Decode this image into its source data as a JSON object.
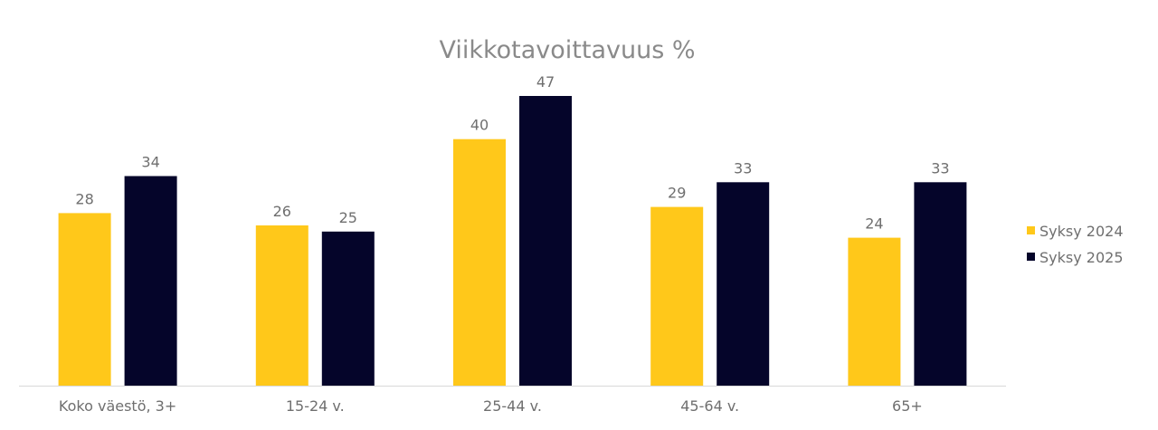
{
  "chart_data": {
    "type": "bar",
    "title": "Viikkotavoittavuus %",
    "categories": [
      "Koko väestö, 3+",
      "15-24 v.",
      "25-44 v.",
      "45-64 v.",
      "65+"
    ],
    "series": [
      {
        "name": "Syksy 2024",
        "color": "#FFC81A",
        "values": [
          28,
          26,
          40,
          29,
          24
        ]
      },
      {
        "name": "Syksy 2025",
        "color": "#05052A",
        "values": [
          34,
          25,
          47,
          33,
          33
        ]
      }
    ],
    "ylim": [
      0,
      50
    ],
    "grid": false,
    "legend_position": "right",
    "data_labels": true,
    "axis_color": "#d9d9d9"
  }
}
